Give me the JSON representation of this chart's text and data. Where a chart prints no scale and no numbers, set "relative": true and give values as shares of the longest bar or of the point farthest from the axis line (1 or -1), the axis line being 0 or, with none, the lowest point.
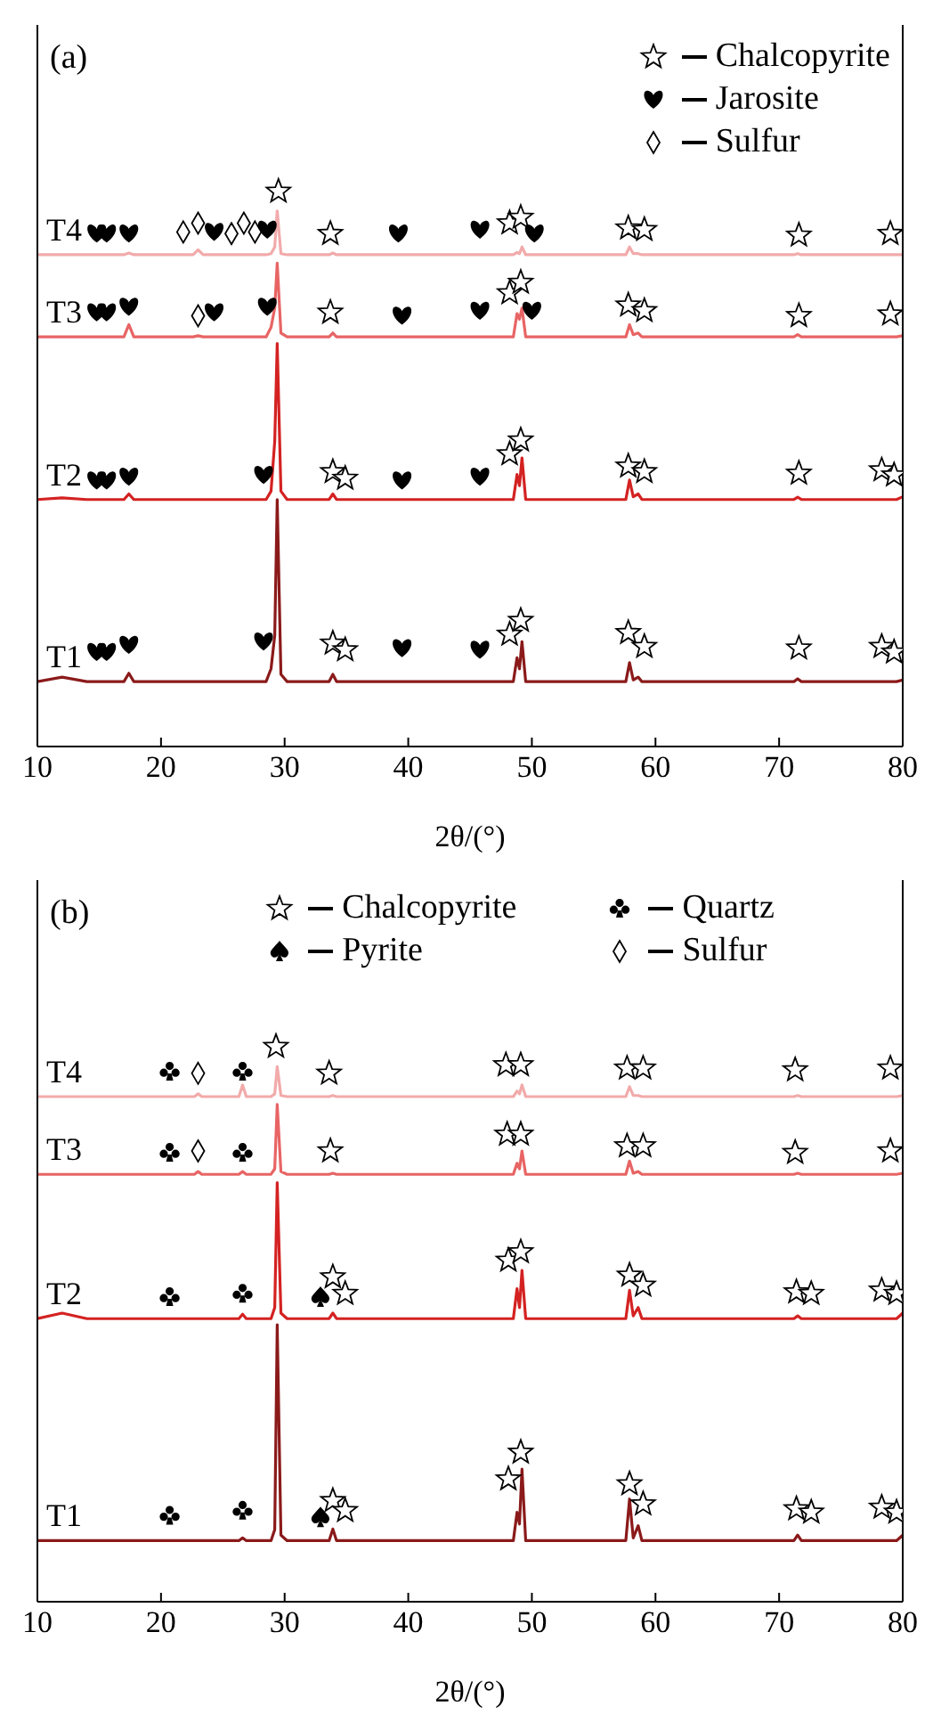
{
  "chart_data": [
    {
      "type": "line",
      "title": "(a)",
      "xlabel": "2θ/(°)",
      "relative": true,
      "xlim": [
        10,
        80
      ],
      "xticks": [
        10,
        20,
        30,
        40,
        50,
        60,
        70,
        80
      ],
      "legend": "top right",
      "line_style": "solid",
      "x": [
        10,
        12,
        14,
        17.0,
        17.4,
        17.8,
        22.6,
        23.0,
        23.4,
        28.5,
        28.9,
        29.2,
        29.4,
        29.7,
        30.2,
        33.6,
        33.9,
        34.2,
        48.5,
        48.8,
        49.0,
        49.2,
        49.5,
        57.6,
        57.9,
        58.2,
        58.6,
        58.9,
        71.2,
        71.5,
        71.8,
        79.5,
        80
      ],
      "series": [
        {
          "name": "T1",
          "color": "#8b1a1a",
          "values": [
            0.117,
            0.125,
            0.117,
            0.117,
            0.132,
            0.117,
            0.117,
            0.117,
            0.117,
            0.117,
            0.14,
            0.2,
            0.445,
            0.13,
            0.117,
            0.117,
            0.13,
            0.117,
            0.117,
            0.16,
            0.14,
            0.189,
            0.117,
            0.117,
            0.151,
            0.12,
            0.125,
            0.117,
            0.117,
            0.122,
            0.117,
            0.117,
            0.12
          ]
        },
        {
          "name": "T2",
          "color": "#d42222",
          "values": [
            0.445,
            0.448,
            0.445,
            0.445,
            0.455,
            0.445,
            0.445,
            0.445,
            0.445,
            0.445,
            0.46,
            0.55,
            0.726,
            0.46,
            0.445,
            0.445,
            0.455,
            0.445,
            0.445,
            0.49,
            0.47,
            0.52,
            0.445,
            0.445,
            0.48,
            0.45,
            0.455,
            0.445,
            0.445,
            0.449,
            0.445,
            0.445,
            0.45
          ]
        },
        {
          "name": "T3",
          "color": "#e86464",
          "values": [
            0.738,
            0.738,
            0.738,
            0.738,
            0.76,
            0.738,
            0.738,
            0.74,
            0.738,
            0.738,
            0.755,
            0.79,
            0.871,
            0.745,
            0.738,
            0.738,
            0.745,
            0.738,
            0.738,
            0.78,
            0.77,
            0.79,
            0.738,
            0.738,
            0.76,
            0.742,
            0.745,
            0.738,
            0.738,
            0.742,
            0.738,
            0.738,
            0.74
          ]
        },
        {
          "name": "T4",
          "color": "#f2aaaa",
          "values": [
            0.886,
            0.886,
            0.886,
            0.886,
            0.889,
            0.886,
            0.886,
            0.895,
            0.886,
            0.886,
            0.888,
            0.9,
            0.965,
            0.888,
            0.886,
            0.886,
            0.889,
            0.886,
            0.886,
            0.89,
            0.888,
            0.9,
            0.886,
            0.886,
            0.9,
            0.888,
            0.888,
            0.886,
            0.886,
            0.888,
            0.886,
            0.886,
            0.886
          ]
        },
        {
          "type": "scatter",
          "name": "Chalcopyrite",
          "color": "#000000",
          "marker": "star",
          "x": [
            29.5,
            33.7,
            48.2,
            49.1,
            57.8,
            59.1,
            71.6,
            79.0,
            33.7,
            48.2,
            49.1,
            57.8,
            59.1,
            71.6,
            79.0,
            33.9,
            34.9,
            48.2,
            49.1,
            57.8,
            59.1,
            71.6,
            78.3,
            79.3,
            33.9,
            34.9,
            48.2,
            49.1,
            57.8,
            59.1,
            71.6,
            78.3,
            79.3
          ],
          "values": [
            1.0,
            0.924,
            0.943,
            0.953,
            0.934,
            0.931,
            0.921,
            0.924,
            0.782,
            0.817,
            0.836,
            0.795,
            0.785,
            0.776,
            0.779,
            0.495,
            0.483,
            0.527,
            0.552,
            0.505,
            0.495,
            0.492,
            0.498,
            0.489,
            0.186,
            0.174,
            0.202,
            0.227,
            0.205,
            0.18,
            0.177,
            0.18,
            0.17
          ]
        },
        {
          "type": "scatter",
          "name": "Jarosite",
          "color": "#000000",
          "x": [
            14.8,
            15.6,
            17.4,
            24.3,
            28.6,
            39.2,
            45.8,
            50.2,
            14.8,
            15.6,
            17.4,
            24.3,
            28.6,
            39.5,
            45.8,
            50.0,
            14.8,
            15.6,
            17.4,
            28.3,
            39.5,
            45.8,
            14.8,
            15.6,
            17.4,
            28.3,
            39.5,
            45.8
          ],
          "values": [
            0.924,
            0.924,
            0.924,
            0.927,
            0.931,
            0.924,
            0.931,
            0.924,
            0.782,
            0.782,
            0.792,
            0.782,
            0.792,
            0.776,
            0.785,
            0.785,
            0.479,
            0.479,
            0.486,
            0.489,
            0.479,
            0.486,
            0.17,
            0.17,
            0.183,
            0.189,
            0.177,
            0.174
          ]
        },
        {
          "type": "scatter",
          "name": "Sulfur",
          "color": "#000000",
          "marker": "diamond",
          "x": [
            21.8,
            23.0,
            25.7,
            26.7,
            27.6,
            23.0
          ],
          "values": [
            0.927,
            0.943,
            0.924,
            0.943,
            0.927,
            0.776
          ]
        }
      ]
    },
    {
      "type": "line",
      "title": "(b)",
      "xlabel": "2θ/(°)",
      "relative": true,
      "xlim": [
        10,
        80
      ],
      "xticks": [
        10,
        20,
        30,
        40,
        50,
        60,
        70,
        80
      ],
      "legend": "top",
      "line_style": "solid",
      "x": [
        10,
        12,
        14,
        20.4,
        20.7,
        21.0,
        22.7,
        23.0,
        23.3,
        26.3,
        26.6,
        26.9,
        28.9,
        29.2,
        29.4,
        29.7,
        30.2,
        33.6,
        33.9,
        34.2,
        48.5,
        48.8,
        49.0,
        49.2,
        49.5,
        57.6,
        57.9,
        58.2,
        58.6,
        58.9,
        71.2,
        71.5,
        71.8,
        79.5,
        80
      ],
      "series": [
        {
          "name": "T1",
          "color": "#8b1a1a",
          "values": [
            0.11,
            0.11,
            0.11,
            0.11,
            0.11,
            0.11,
            0.11,
            0.11,
            0.11,
            0.11,
            0.115,
            0.11,
            0.11,
            0.13,
            0.499,
            0.12,
            0.11,
            0.11,
            0.131,
            0.11,
            0.11,
            0.161,
            0.14,
            0.239,
            0.11,
            0.11,
            0.185,
            0.115,
            0.137,
            0.11,
            0.11,
            0.12,
            0.11,
            0.11,
            0.12
          ]
        },
        {
          "name": "T2",
          "color": "#d42222",
          "values": [
            0.51,
            0.52,
            0.51,
            0.51,
            0.51,
            0.51,
            0.51,
            0.51,
            0.51,
            0.51,
            0.518,
            0.51,
            0.51,
            0.53,
            0.755,
            0.52,
            0.51,
            0.51,
            0.52,
            0.51,
            0.51,
            0.564,
            0.53,
            0.597,
            0.51,
            0.51,
            0.561,
            0.515,
            0.53,
            0.51,
            0.51,
            0.515,
            0.51,
            0.51,
            0.52
          ]
        },
        {
          "name": "T3",
          "color": "#e86464",
          "values": [
            0.77,
            0.77,
            0.77,
            0.77,
            0.77,
            0.77,
            0.77,
            0.775,
            0.77,
            0.77,
            0.775,
            0.77,
            0.77,
            0.78,
            0.896,
            0.775,
            0.77,
            0.77,
            0.772,
            0.77,
            0.77,
            0.79,
            0.78,
            0.812,
            0.77,
            0.77,
            0.794,
            0.772,
            0.775,
            0.77,
            0.77,
            0.772,
            0.77,
            0.77,
            0.772
          ]
        },
        {
          "name": "T4",
          "color": "#f2aaaa",
          "values": [
            0.91,
            0.91,
            0.91,
            0.91,
            0.91,
            0.91,
            0.91,
            0.915,
            0.91,
            0.91,
            0.931,
            0.91,
            0.91,
            0.915,
            0.964,
            0.912,
            0.91,
            0.91,
            0.912,
            0.91,
            0.91,
            0.92,
            0.915,
            0.931,
            0.91,
            0.91,
            0.928,
            0.912,
            0.912,
            0.91,
            0.91,
            0.912,
            0.91,
            0.91,
            0.912
          ]
        },
        {
          "type": "scatter",
          "name": "Chalcopyrite",
          "color": "#000000",
          "marker": "star",
          "x": [
            29.3,
            33.6,
            47.9,
            49.1,
            57.7,
            59.0,
            71.3,
            79.0,
            33.7,
            48.0,
            49.1,
            57.7,
            59.0,
            71.3,
            79.0,
            33.9,
            34.9,
            48.1,
            49.1,
            57.9,
            59.0,
            71.4,
            72.6,
            78.3,
            79.5,
            33.9,
            34.9,
            48.1,
            49.1,
            57.9,
            59.0,
            71.4,
            72.6,
            78.3,
            79.5
          ],
          "values": [
            1.0,
            0.952,
            0.967,
            0.967,
            0.961,
            0.961,
            0.958,
            0.961,
            0.812,
            0.842,
            0.842,
            0.821,
            0.821,
            0.809,
            0.812,
            0.585,
            0.555,
            0.615,
            0.63,
            0.588,
            0.57,
            0.558,
            0.555,
            0.561,
            0.555,
            0.182,
            0.164,
            0.221,
            0.269,
            0.212,
            0.176,
            0.167,
            0.161,
            0.17,
            0.161
          ]
        },
        {
          "type": "scatter",
          "name": "Quartz",
          "color": "#000000",
          "x": [
            20.7,
            26.6,
            20.7,
            26.6,
            20.7,
            26.6,
            20.7,
            26.6
          ],
          "values": [
            0.955,
            0.955,
            0.809,
            0.809,
            0.549,
            0.555,
            0.155,
            0.164
          ]
        },
        {
          "type": "scatter",
          "name": "Pyrite",
          "color": "#000000",
          "x": [
            32.9,
            32.9
          ],
          "values": [
            0.549,
            0.152
          ]
        },
        {
          "type": "scatter",
          "name": "Sulfur",
          "color": "#000000",
          "marker": "diamond",
          "x": [
            23.0,
            23.0
          ],
          "values": [
            0.952,
            0.812
          ]
        }
      ]
    }
  ]
}
